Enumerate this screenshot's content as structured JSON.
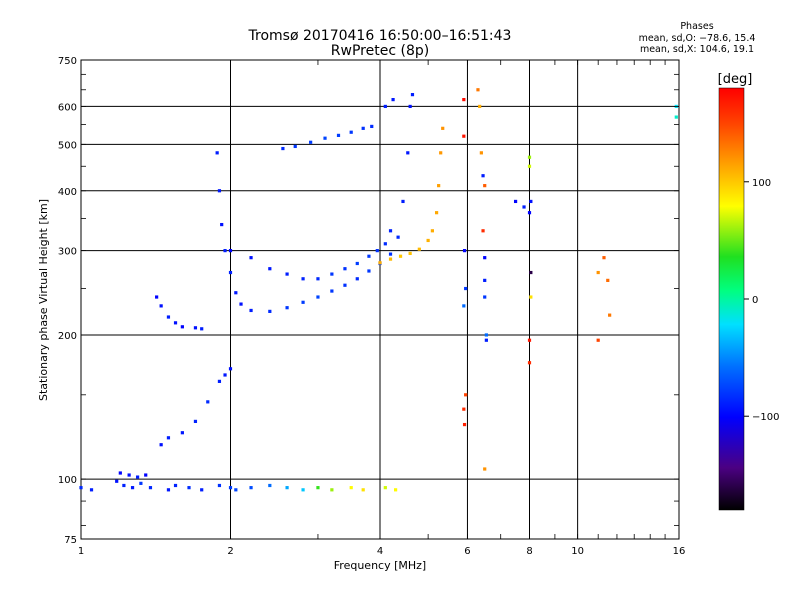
{
  "header": {
    "title_line1": "Tromsø 20170416 16:50:00–16:51:43",
    "title_line2": "RwPretec (8p)"
  },
  "phase_box": {
    "title": "Phases",
    "line1": "mean, sd,O: −78.6, 15.4",
    "line2": "mean, sd,X: 104.6, 19.1"
  },
  "chart_data": {
    "type": "scatter",
    "xlabel": "Frequency [MHz]",
    "ylabel": "Stationary phase Virtual Height [km]",
    "x_scale": "log",
    "y_scale": "log",
    "xlim": [
      1,
      16
    ],
    "ylim": [
      75,
      750
    ],
    "x_ticks": [
      1,
      2,
      4,
      6,
      8,
      10,
      16
    ],
    "x_tick_labels": [
      "1",
      "2",
      "4",
      "6",
      "8",
      "10",
      "16"
    ],
    "y_ticks": [
      75,
      100,
      200,
      300,
      400,
      500,
      600,
      750
    ],
    "y_tick_labels": [
      "75",
      "100",
      "200",
      "300",
      "400",
      "500",
      "600",
      "750"
    ],
    "grid": true,
    "colorbar": {
      "label": "[deg]",
      "range": [
        -180,
        180
      ],
      "ticks": [
        100,
        0,
        -100
      ],
      "tick_labels": [
        "100",
        "0",
        "−100"
      ]
    },
    "series": [
      {
        "group": "E-region echoes (~95 km)",
        "points": [
          [
            1.0,
            96,
            -85
          ],
          [
            1.05,
            95,
            -90
          ],
          [
            1.18,
            99,
            -95
          ],
          [
            1.22,
            97,
            -88
          ],
          [
            1.27,
            96,
            -92
          ],
          [
            1.32,
            98,
            -80
          ],
          [
            1.38,
            96,
            -86
          ],
          [
            1.5,
            95,
            -92
          ],
          [
            1.55,
            97,
            -88
          ],
          [
            1.65,
            96,
            -84
          ],
          [
            1.75,
            95,
            -90
          ],
          [
            1.9,
            97,
            -82
          ],
          [
            2.0,
            96,
            -78
          ],
          [
            2.05,
            95,
            -75
          ],
          [
            2.2,
            96,
            -72
          ],
          [
            2.4,
            97,
            -60
          ],
          [
            2.6,
            96,
            -40
          ],
          [
            2.8,
            95,
            -30
          ],
          [
            3.0,
            96,
            40
          ],
          [
            3.2,
            95,
            60
          ],
          [
            3.5,
            96,
            80
          ],
          [
            3.7,
            95,
            90
          ],
          [
            4.1,
            96,
            70
          ],
          [
            4.3,
            95,
            80
          ]
        ]
      },
      {
        "group": "E-layer trace (low)",
        "points": [
          [
            1.2,
            103,
            -100
          ],
          [
            1.25,
            102,
            -95
          ],
          [
            1.3,
            101,
            -90
          ],
          [
            1.35,
            102,
            -100
          ],
          [
            1.45,
            118,
            -95
          ],
          [
            1.5,
            122,
            -90
          ],
          [
            1.6,
            125,
            -92
          ],
          [
            1.7,
            132,
            -88
          ],
          [
            1.8,
            145,
            -85
          ],
          [
            1.9,
            160,
            -90
          ],
          [
            1.95,
            165,
            -92
          ],
          [
            2.0,
            170,
            -95
          ]
        ]
      },
      {
        "group": "Es / low F trace",
        "points": [
          [
            1.42,
            240,
            -100
          ],
          [
            1.45,
            230,
            -95
          ],
          [
            1.5,
            218,
            -90
          ],
          [
            1.55,
            212,
            -95
          ],
          [
            1.6,
            208,
            -100
          ],
          [
            1.7,
            207,
            -95
          ],
          [
            1.75,
            206,
            -90
          ]
        ]
      },
      {
        "group": "F-layer O-mode",
        "points": [
          [
            1.88,
            480,
            -90
          ],
          [
            1.9,
            400,
            -92
          ],
          [
            1.92,
            340,
            -95
          ],
          [
            1.95,
            300,
            -90
          ],
          [
            2.0,
            270,
            -88
          ],
          [
            2.05,
            245,
            -92
          ],
          [
            2.1,
            232,
            -95
          ],
          [
            2.2,
            225,
            -90
          ],
          [
            2.4,
            224,
            -85
          ],
          [
            2.6,
            228,
            -80
          ],
          [
            2.8,
            234,
            -78
          ],
          [
            3.0,
            240,
            -75
          ],
          [
            3.2,
            247,
            -80
          ],
          [
            3.4,
            254,
            -82
          ],
          [
            3.6,
            262,
            -85
          ],
          [
            3.8,
            272,
            -80
          ],
          [
            4.0,
            282,
            -78
          ],
          [
            4.2,
            295,
            -82
          ],
          [
            4.35,
            320,
            -85
          ],
          [
            4.45,
            380,
            -90
          ],
          [
            4.55,
            480,
            -92
          ],
          [
            4.6,
            600,
            -95
          ],
          [
            4.65,
            635,
            -90
          ]
        ]
      },
      {
        "group": "F-layer upper branch",
        "points": [
          [
            2.0,
            300,
            -100
          ],
          [
            2.2,
            290,
            -95
          ],
          [
            2.4,
            275,
            -92
          ],
          [
            2.6,
            268,
            -90
          ],
          [
            2.8,
            262,
            -88
          ],
          [
            3.0,
            262,
            -85
          ],
          [
            3.2,
            268,
            -80
          ],
          [
            3.4,
            275,
            -82
          ],
          [
            3.6,
            282,
            -78
          ],
          [
            3.8,
            292,
            -80
          ],
          [
            3.95,
            300,
            -82
          ],
          [
            4.1,
            310,
            -85
          ],
          [
            4.2,
            330,
            -88
          ]
        ]
      },
      {
        "group": "Upper echoes (~500 km)",
        "points": [
          [
            2.55,
            490,
            -85
          ],
          [
            2.7,
            495,
            -80
          ],
          [
            2.9,
            505,
            -78
          ],
          [
            3.1,
            515,
            -75
          ],
          [
            3.3,
            522,
            -78
          ],
          [
            3.5,
            530,
            -80
          ],
          [
            3.7,
            540,
            -82
          ],
          [
            3.85,
            545,
            -85
          ],
          [
            4.1,
            600,
            -90
          ],
          [
            4.25,
            620,
            -92
          ]
        ]
      },
      {
        "group": "F-layer X-mode",
        "points": [
          [
            4.0,
            283,
            110
          ],
          [
            4.2,
            288,
            105
          ],
          [
            4.4,
            292,
            100
          ],
          [
            4.6,
            296,
            102
          ],
          [
            4.8,
            302,
            105
          ],
          [
            5.0,
            315,
            108
          ],
          [
            5.1,
            330,
            110
          ],
          [
            5.2,
            360,
            112
          ],
          [
            5.25,
            410,
            115
          ],
          [
            5.3,
            480,
            118
          ],
          [
            5.35,
            540,
            120
          ]
        ]
      },
      {
        "group": "Scattered high-frequency echoes",
        "points": [
          [
            5.9,
            620,
            175
          ],
          [
            5.9,
            520,
            170
          ],
          [
            5.92,
            300,
            -100
          ],
          [
            5.95,
            250,
            -80
          ],
          [
            5.9,
            230,
            -60
          ],
          [
            5.95,
            150,
            150
          ],
          [
            5.9,
            140,
            160
          ],
          [
            5.92,
            130,
            165
          ],
          [
            6.3,
            650,
            130
          ],
          [
            6.35,
            600,
            110
          ],
          [
            6.4,
            480,
            120
          ],
          [
            6.45,
            430,
            -90
          ],
          [
            6.5,
            410,
            140
          ],
          [
            6.45,
            330,
            160
          ],
          [
            6.5,
            290,
            -100
          ],
          [
            6.5,
            260,
            -90
          ],
          [
            6.5,
            240,
            -80
          ],
          [
            6.55,
            200,
            -60
          ],
          [
            6.55,
            195,
            -90
          ],
          [
            6.5,
            105,
            120
          ],
          [
            7.5,
            380,
            -100
          ],
          [
            7.8,
            370,
            -90
          ],
          [
            8.0,
            470,
            60
          ],
          [
            8.0,
            450,
            70
          ],
          [
            8.05,
            380,
            -95
          ],
          [
            8.0,
            360,
            -100
          ],
          [
            8.05,
            270,
            -160
          ],
          [
            8.05,
            240,
            90
          ],
          [
            8.0,
            195,
            170
          ],
          [
            8.0,
            175,
            160
          ],
          [
            11.0,
            270,
            120
          ],
          [
            11.3,
            290,
            140
          ],
          [
            11.5,
            260,
            135
          ],
          [
            11.6,
            220,
            130
          ],
          [
            11.0,
            195,
            150
          ],
          [
            15.8,
            600,
            -20
          ],
          [
            15.8,
            570,
            -10
          ]
        ]
      }
    ]
  }
}
